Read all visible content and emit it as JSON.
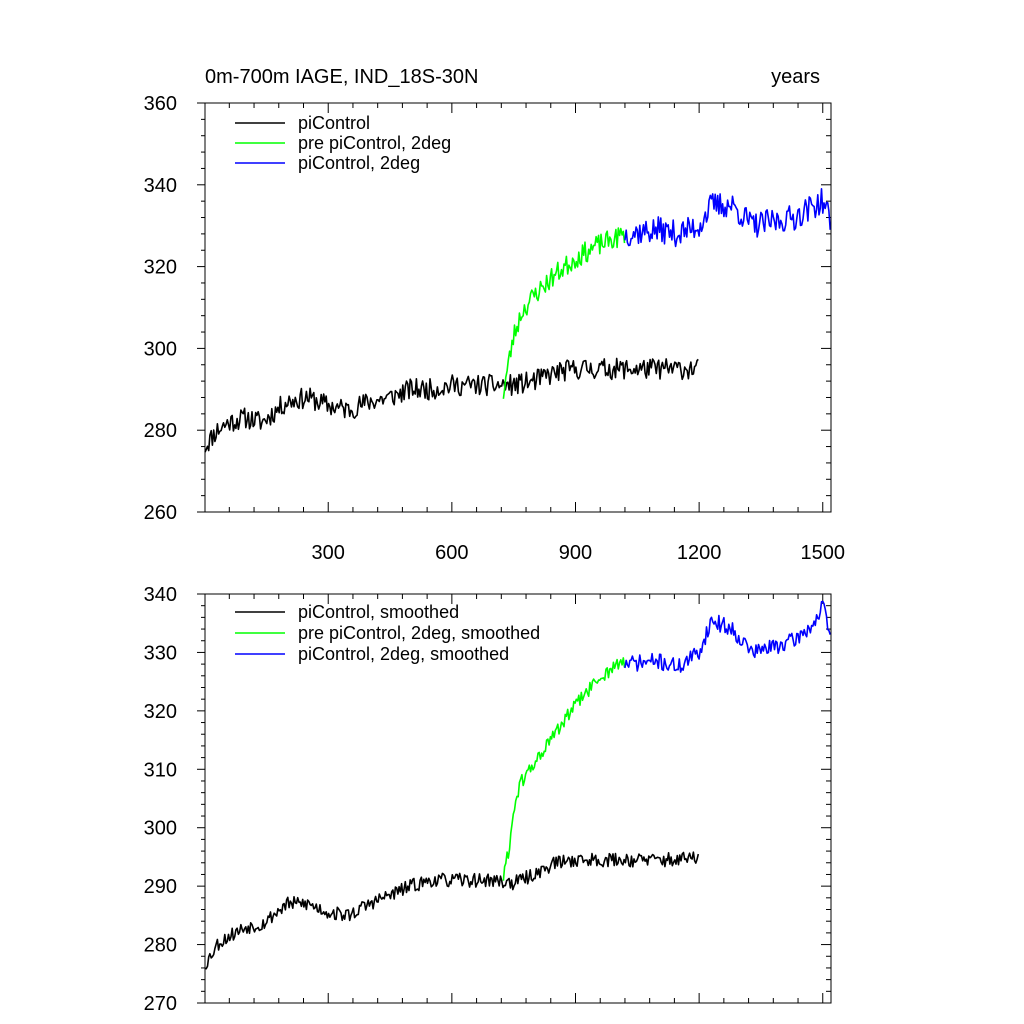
{
  "chart_data": [
    {
      "type": "line",
      "title_left": "0m-700m IAGE, IND_18S-30N",
      "title_right": "years",
      "xlim": [
        1,
        1520
      ],
      "ylim": [
        260,
        360
      ],
      "xticks": [
        300,
        600,
        900,
        1200,
        1500
      ],
      "xtick_labels": [
        "300",
        "600",
        "900",
        "1200",
        "1500"
      ],
      "yticks": [
        260,
        280,
        300,
        320,
        340,
        360
      ],
      "ytick_labels": [
        "260",
        "280",
        "300",
        "320",
        "340",
        "360"
      ],
      "legend_position": "top-left",
      "series": [
        {
          "name": "piControl",
          "color": "#000000",
          "anchors": [
            [
              1,
              276
            ],
            [
              30,
              280
            ],
            [
              60,
              282
            ],
            [
              100,
              283
            ],
            [
              140,
              282
            ],
            [
              200,
              287
            ],
            [
              250,
              288
            ],
            [
              300,
              286
            ],
            [
              350,
              285
            ],
            [
              400,
              287
            ],
            [
              450,
              288
            ],
            [
              500,
              290
            ],
            [
              550,
              290
            ],
            [
              600,
              291
            ],
            [
              650,
              291
            ],
            [
              700,
              291
            ],
            [
              750,
              291
            ],
            [
              800,
              292
            ],
            [
              850,
              294
            ],
            [
              900,
              295
            ],
            [
              950,
              295
            ],
            [
              1000,
              295
            ],
            [
              1050,
              295
            ],
            [
              1100,
              295
            ],
            [
              1150,
              295
            ],
            [
              1200,
              295
            ]
          ],
          "noise": 2.6,
          "seed": 11
        },
        {
          "name": "pre piControl, 2deg",
          "color": "#00ff00",
          "anchors": [
            [
              725,
              289
            ],
            [
              735,
              295
            ],
            [
              750,
              303
            ],
            [
              770,
              309
            ],
            [
              800,
              313
            ],
            [
              850,
              318
            ],
            [
              900,
              322
            ],
            [
              950,
              325
            ],
            [
              1000,
              327
            ],
            [
              1020,
              328
            ]
          ],
          "noise": 2.6,
          "seed": 23
        },
        {
          "name": "piControl, 2deg",
          "color": "#0000ff",
          "anchors": [
            [
              1020,
              328
            ],
            [
              1100,
              329
            ],
            [
              1150,
              328
            ],
            [
              1200,
              330
            ],
            [
              1230,
              335
            ],
            [
              1280,
              335
            ],
            [
              1330,
              330
            ],
            [
              1380,
              331
            ],
            [
              1430,
              332
            ],
            [
              1480,
              335
            ],
            [
              1500,
              336
            ],
            [
              1520,
              331
            ]
          ],
          "noise": 3.2,
          "seed": 37
        }
      ]
    },
    {
      "type": "line",
      "xlim": [
        1,
        1520
      ],
      "ylim": [
        270,
        340
      ],
      "xticks": [
        300,
        600,
        900,
        1200,
        1500
      ],
      "yticks": [
        270,
        280,
        290,
        300,
        310,
        320,
        330,
        340
      ],
      "ytick_labels": [
        "270",
        "280",
        "290",
        "300",
        "310",
        "320",
        "330",
        "340"
      ],
      "legend_position": "top-left",
      "series": [
        {
          "name": "piControl, smoothed",
          "color": "#000000",
          "anchors": [
            [
              1,
              276.5
            ],
            [
              30,
              280
            ],
            [
              60,
              281.5
            ],
            [
              100,
              283
            ],
            [
              140,
              283.5
            ],
            [
              200,
              287
            ],
            [
              250,
              287
            ],
            [
              300,
              285.5
            ],
            [
              350,
              285
            ],
            [
              400,
              287
            ],
            [
              450,
              288.5
            ],
            [
              500,
              290
            ],
            [
              550,
              291
            ],
            [
              600,
              291
            ],
            [
              650,
              291
            ],
            [
              700,
              291
            ],
            [
              750,
              290.5
            ],
            [
              800,
              292
            ],
            [
              850,
              294
            ],
            [
              900,
              294.5
            ],
            [
              950,
              294.5
            ],
            [
              1000,
              294.5
            ],
            [
              1050,
              294.5
            ],
            [
              1100,
              294.5
            ],
            [
              1150,
              294.5
            ],
            [
              1200,
              295
            ]
          ],
          "noise": 1.2,
          "seed": 53
        },
        {
          "name": "pre piControl, 2deg, smoothed",
          "color": "#00ff00",
          "anchors": [
            [
              725,
              291.5
            ],
            [
              740,
              297
            ],
            [
              752,
              304
            ],
            [
              770,
              308
            ],
            [
              800,
              311
            ],
            [
              850,
              316
            ],
            [
              900,
              321
            ],
            [
              950,
              325
            ],
            [
              1000,
              328
            ],
            [
              1020,
              328
            ]
          ],
          "noise": 1.2,
          "seed": 61
        },
        {
          "name": "piControl, 2deg, smoothed",
          "color": "#0000ff",
          "anchors": [
            [
              1020,
              328
            ],
            [
              1100,
              328.5
            ],
            [
              1150,
              327.5
            ],
            [
              1200,
              330
            ],
            [
              1230,
              335.5
            ],
            [
              1280,
              334
            ],
            [
              1330,
              330
            ],
            [
              1380,
              331
            ],
            [
              1430,
              332
            ],
            [
              1480,
              335
            ],
            [
              1500,
              338
            ],
            [
              1520,
              332
            ]
          ],
          "noise": 1.4,
          "seed": 71
        }
      ]
    }
  ]
}
